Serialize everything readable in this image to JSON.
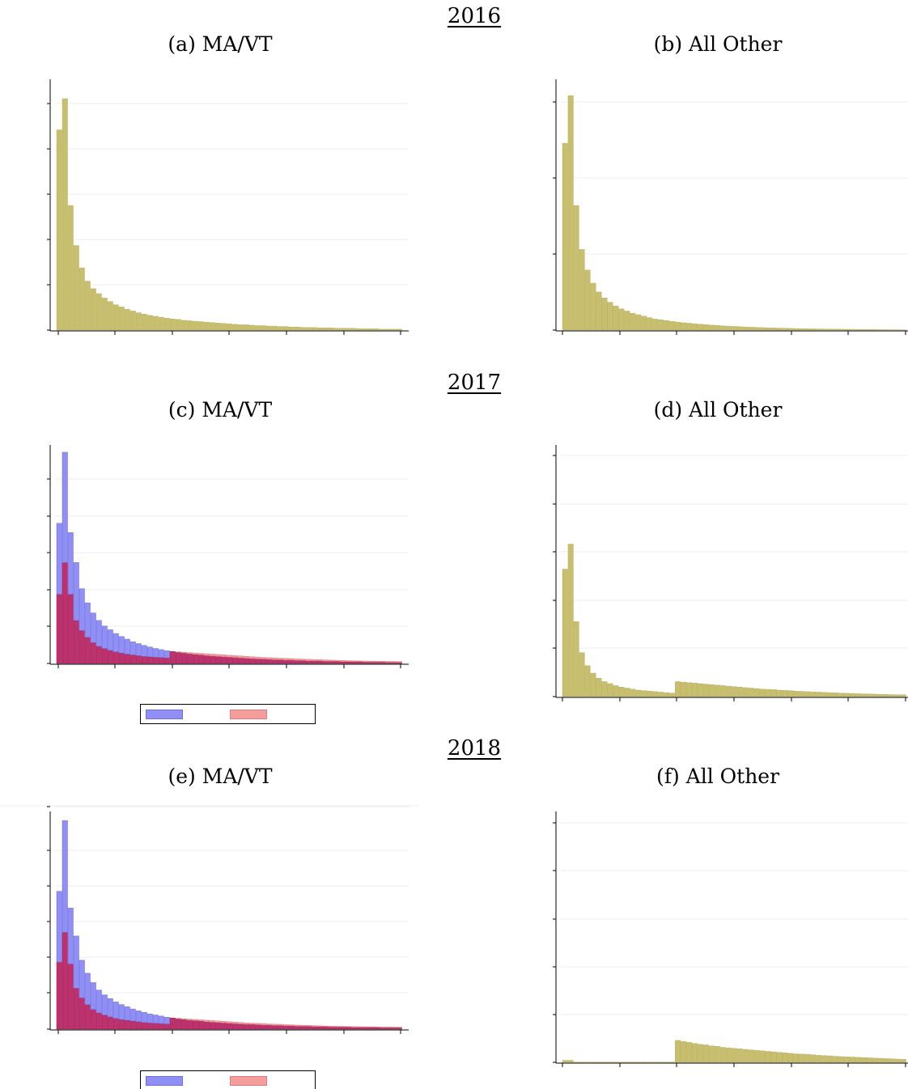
{
  "figure": {
    "years": [
      "2016",
      "2017",
      "2018"
    ],
    "panel_titles": [
      "(a) MA/VT",
      "(b) All Other",
      "(c) MA/VT",
      "(d) All Other",
      "(e) MA/VT",
      "(f) All Other"
    ],
    "colors": {
      "single": "#c8bf6e",
      "blue": "#8f8ff5",
      "red": "#f59d9d",
      "overlap": "#c0306e",
      "grid": "#ececec"
    }
  },
  "chart_data": [
    {
      "type": "bar",
      "title": "(a) MA/VT",
      "ylim": [
        0,
        5.6
      ],
      "grid": true,
      "series": [
        {
          "values": [
            4.5,
            5.2,
            2.8,
            1.9,
            1.4,
            1.1,
            0.93,
            0.82,
            0.72,
            0.64,
            0.57,
            0.52,
            0.47,
            0.43,
            0.39,
            0.36,
            0.33,
            0.31,
            0.29,
            0.27,
            0.25,
            0.24,
            0.22,
            0.21,
            0.2,
            0.19,
            0.18,
            0.17,
            0.16,
            0.15,
            0.14,
            0.13,
            0.12,
            0.12,
            0.11,
            0.1,
            0.1,
            0.09,
            0.09,
            0.08,
            0.08,
            0.07,
            0.07,
            0.06,
            0.06,
            0.06,
            0.05,
            0.05,
            0.05,
            0.04,
            0.04,
            0.04,
            0.04,
            0.03,
            0.03,
            0.03,
            0.03,
            0.02,
            0.02,
            0.02,
            0.02
          ]
        }
      ]
    },
    {
      "type": "bar",
      "title": "(b) All Other",
      "ylim": [
        0,
        3.4
      ],
      "grid": true,
      "series": [
        {
          "values": [
            2.55,
            3.2,
            1.7,
            1.1,
            0.82,
            0.64,
            0.52,
            0.44,
            0.38,
            0.33,
            0.29,
            0.26,
            0.23,
            0.21,
            0.19,
            0.17,
            0.15,
            0.14,
            0.13,
            0.12,
            0.11,
            0.1,
            0.094,
            0.087,
            0.08,
            0.074,
            0.068,
            0.063,
            0.058,
            0.054,
            0.05,
            0.046,
            0.043,
            0.04,
            0.037,
            0.034,
            0.031,
            0.029,
            0.027,
            0.025,
            0.023,
            0.021,
            0.02,
            0.018,
            0.017,
            0.016,
            0.015,
            0.014,
            0.013,
            0.012,
            0.011,
            0.01,
            0.009,
            0.008,
            0.008,
            0.007,
            0.006,
            0.006,
            0.005,
            0.005,
            0.004
          ]
        }
      ]
    },
    {
      "type": "bar",
      "title": "(c) MA/VT",
      "ylim": [
        0,
        5.8
      ],
      "grid": true,
      "series": [
        {
          "values": [
            3.75,
            5.65,
            3.5,
            2.7,
            2.0,
            1.62,
            1.35,
            1.15,
            1.0,
            0.9,
            0.8,
            0.72,
            0.65,
            0.58,
            0.53,
            0.48,
            0.44,
            0.4,
            0.37,
            0.34,
            0.32,
            0.3,
            0.28,
            0.26,
            0.24,
            0.23,
            0.21,
            0.2,
            0.19,
            0.18,
            0.17,
            0.16,
            0.15,
            0.14,
            0.13,
            0.12,
            0.12,
            0.11,
            0.1,
            0.1,
            0.09,
            0.09,
            0.08,
            0.08,
            0.07,
            0.07,
            0.07,
            0.06,
            0.06,
            0.06,
            0.05,
            0.05,
            0.05,
            0.05,
            0.04,
            0.04,
            0.04,
            0.04,
            0.03,
            0.03,
            0.03
          ]
        },
        {
          "values": [
            1.85,
            2.7,
            1.85,
            1.15,
            0.88,
            0.7,
            0.56,
            0.46,
            0.4,
            0.35,
            0.31,
            0.28,
            0.25,
            0.23,
            0.21,
            0.19,
            0.18,
            0.17,
            0.16,
            0.15,
            0.32,
            0.31,
            0.3,
            0.29,
            0.28,
            0.27,
            0.26,
            0.25,
            0.24,
            0.23,
            0.22,
            0.21,
            0.2,
            0.19,
            0.18,
            0.17,
            0.16,
            0.155,
            0.15,
            0.14,
            0.135,
            0.13,
            0.12,
            0.115,
            0.11,
            0.105,
            0.1,
            0.095,
            0.09,
            0.085,
            0.08,
            0.075,
            0.07,
            0.068,
            0.065,
            0.062,
            0.06,
            0.058,
            0.056,
            0.054,
            0.052
          ]
        }
      ]
    },
    {
      "type": "bar",
      "title": "(d) All Other",
      "ylim": [
        0,
        5.0
      ],
      "grid": true,
      "series": [
        {
          "values": [
            2.55,
            3.05,
            1.5,
            0.88,
            0.62,
            0.47,
            0.37,
            0.3,
            0.26,
            0.22,
            0.19,
            0.17,
            0.15,
            0.13,
            0.12,
            0.11,
            0.1,
            0.09,
            0.08,
            0.07,
            0.3,
            0.29,
            0.28,
            0.27,
            0.26,
            0.25,
            0.24,
            0.23,
            0.22,
            0.21,
            0.2,
            0.19,
            0.18,
            0.17,
            0.16,
            0.15,
            0.145,
            0.14,
            0.13,
            0.125,
            0.12,
            0.11,
            0.105,
            0.1,
            0.095,
            0.09,
            0.085,
            0.08,
            0.075,
            0.07,
            0.066,
            0.062,
            0.058,
            0.055,
            0.052,
            0.049,
            0.046,
            0.043,
            0.04,
            0.038,
            0.036
          ]
        }
      ]
    },
    {
      "type": "bar",
      "title": "(e) MA/VT",
      "ylim": [
        0,
        5.8
      ],
      "grid": true,
      "series": [
        {
          "values": [
            3.7,
            5.6,
            3.25,
            2.5,
            1.85,
            1.5,
            1.25,
            1.05,
            0.92,
            0.82,
            0.73,
            0.66,
            0.6,
            0.54,
            0.49,
            0.45,
            0.41,
            0.38,
            0.35,
            0.32,
            0.3,
            0.28,
            0.26,
            0.24,
            0.23,
            0.22,
            0.2,
            0.19,
            0.18,
            0.17,
            0.16,
            0.15,
            0.14,
            0.13,
            0.13,
            0.12,
            0.11,
            0.11,
            0.1,
            0.1,
            0.09,
            0.09,
            0.08,
            0.08,
            0.08,
            0.07,
            0.07,
            0.07,
            0.06,
            0.06,
            0.06,
            0.06,
            0.05,
            0.05,
            0.05,
            0.05,
            0.05,
            0.04,
            0.04,
            0.04,
            0.04
          ]
        },
        {
          "values": [
            1.8,
            2.6,
            1.75,
            1.1,
            0.84,
            0.66,
            0.53,
            0.44,
            0.38,
            0.33,
            0.29,
            0.26,
            0.24,
            0.22,
            0.2,
            0.18,
            0.17,
            0.16,
            0.15,
            0.14,
            0.3,
            0.29,
            0.28,
            0.27,
            0.26,
            0.25,
            0.24,
            0.23,
            0.22,
            0.21,
            0.2,
            0.19,
            0.18,
            0.17,
            0.16,
            0.155,
            0.15,
            0.14,
            0.135,
            0.13,
            0.12,
            0.115,
            0.11,
            0.105,
            0.1,
            0.095,
            0.09,
            0.085,
            0.082,
            0.079,
            0.076,
            0.073,
            0.07,
            0.068,
            0.066,
            0.064,
            0.062,
            0.06,
            0.058,
            0.056,
            0.054
          ]
        }
      ]
    },
    {
      "type": "bar",
      "title": "(f) All Other",
      "ylim": [
        0,
        5.0
      ],
      "grid": true,
      "series": [
        {
          "values": [
            0.04,
            0.04,
            0.005,
            0.005,
            0.005,
            0.005,
            0.005,
            0.005,
            0.005,
            0.005,
            0.005,
            0.005,
            0.005,
            0.005,
            0.005,
            0.005,
            0.005,
            0.005,
            0.005,
            0.005,
            0.44,
            0.42,
            0.4,
            0.38,
            0.36,
            0.35,
            0.33,
            0.32,
            0.3,
            0.29,
            0.28,
            0.27,
            0.26,
            0.25,
            0.24,
            0.23,
            0.22,
            0.21,
            0.2,
            0.19,
            0.18,
            0.17,
            0.165,
            0.16,
            0.15,
            0.14,
            0.135,
            0.13,
            0.12,
            0.115,
            0.11,
            0.105,
            0.1,
            0.095,
            0.09,
            0.085,
            0.08,
            0.075,
            0.07,
            0.065,
            0.06
          ]
        }
      ]
    }
  ]
}
